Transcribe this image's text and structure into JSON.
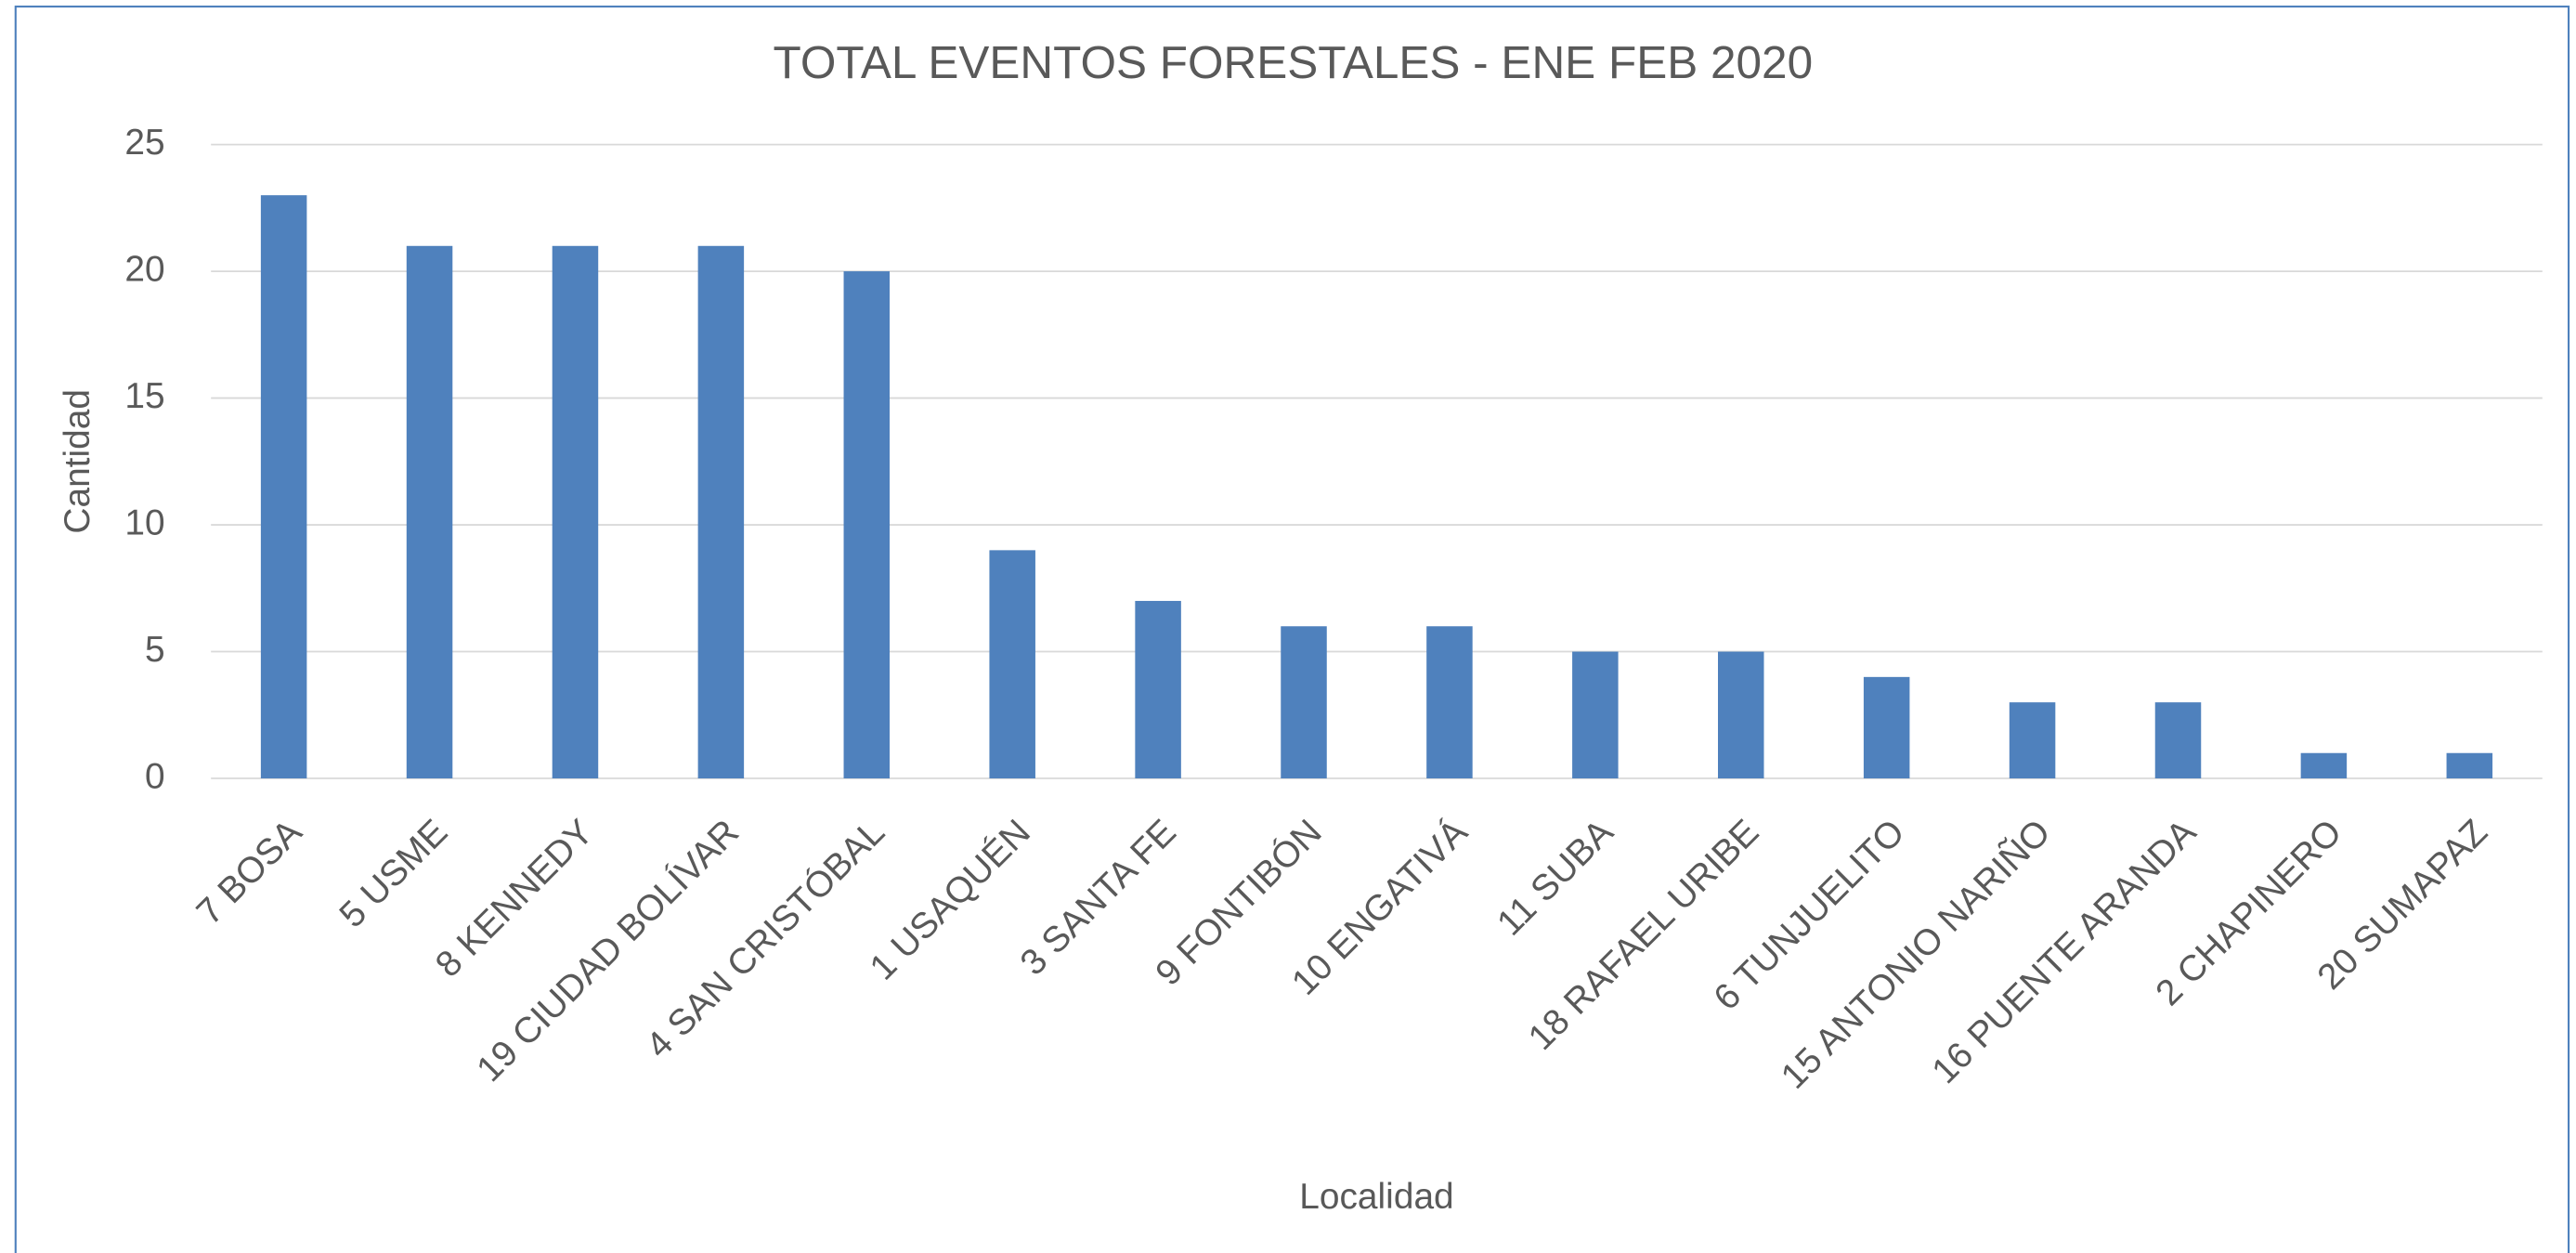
{
  "chart_data": {
    "type": "bar",
    "title": "TOTAL EVENTOS FORESTALES - ENE FEB 2020",
    "x_label": "Localidad",
    "y_label": "Cantidad",
    "categories": [
      "7 BOSA",
      "5 USME",
      "8 KENNEDY",
      "19 CIUDAD BOLÍVAR",
      "4 SAN CRISTÓBAL",
      "1 USAQUÉN",
      "3 SANTA FE",
      "9 FONTIBÓN",
      "10 ENGATIVÁ",
      "11 SUBA",
      "18 RAFAEL URIBE",
      "6 TUNJUELITO",
      "15 ANTONIO NARIÑO",
      "16 PUENTE ARANDA",
      "2 CHAPINERO",
      "20 SUMAPAZ"
    ],
    "values": [
      23,
      21,
      21,
      21,
      20,
      9,
      7,
      6,
      6,
      5,
      5,
      4,
      3,
      3,
      1,
      1
    ],
    "color": "#4f81bd",
    "ylim": [
      0,
      25
    ],
    "yticks": [
      0,
      5,
      10,
      15,
      20,
      25
    ],
    "grid": true
  }
}
